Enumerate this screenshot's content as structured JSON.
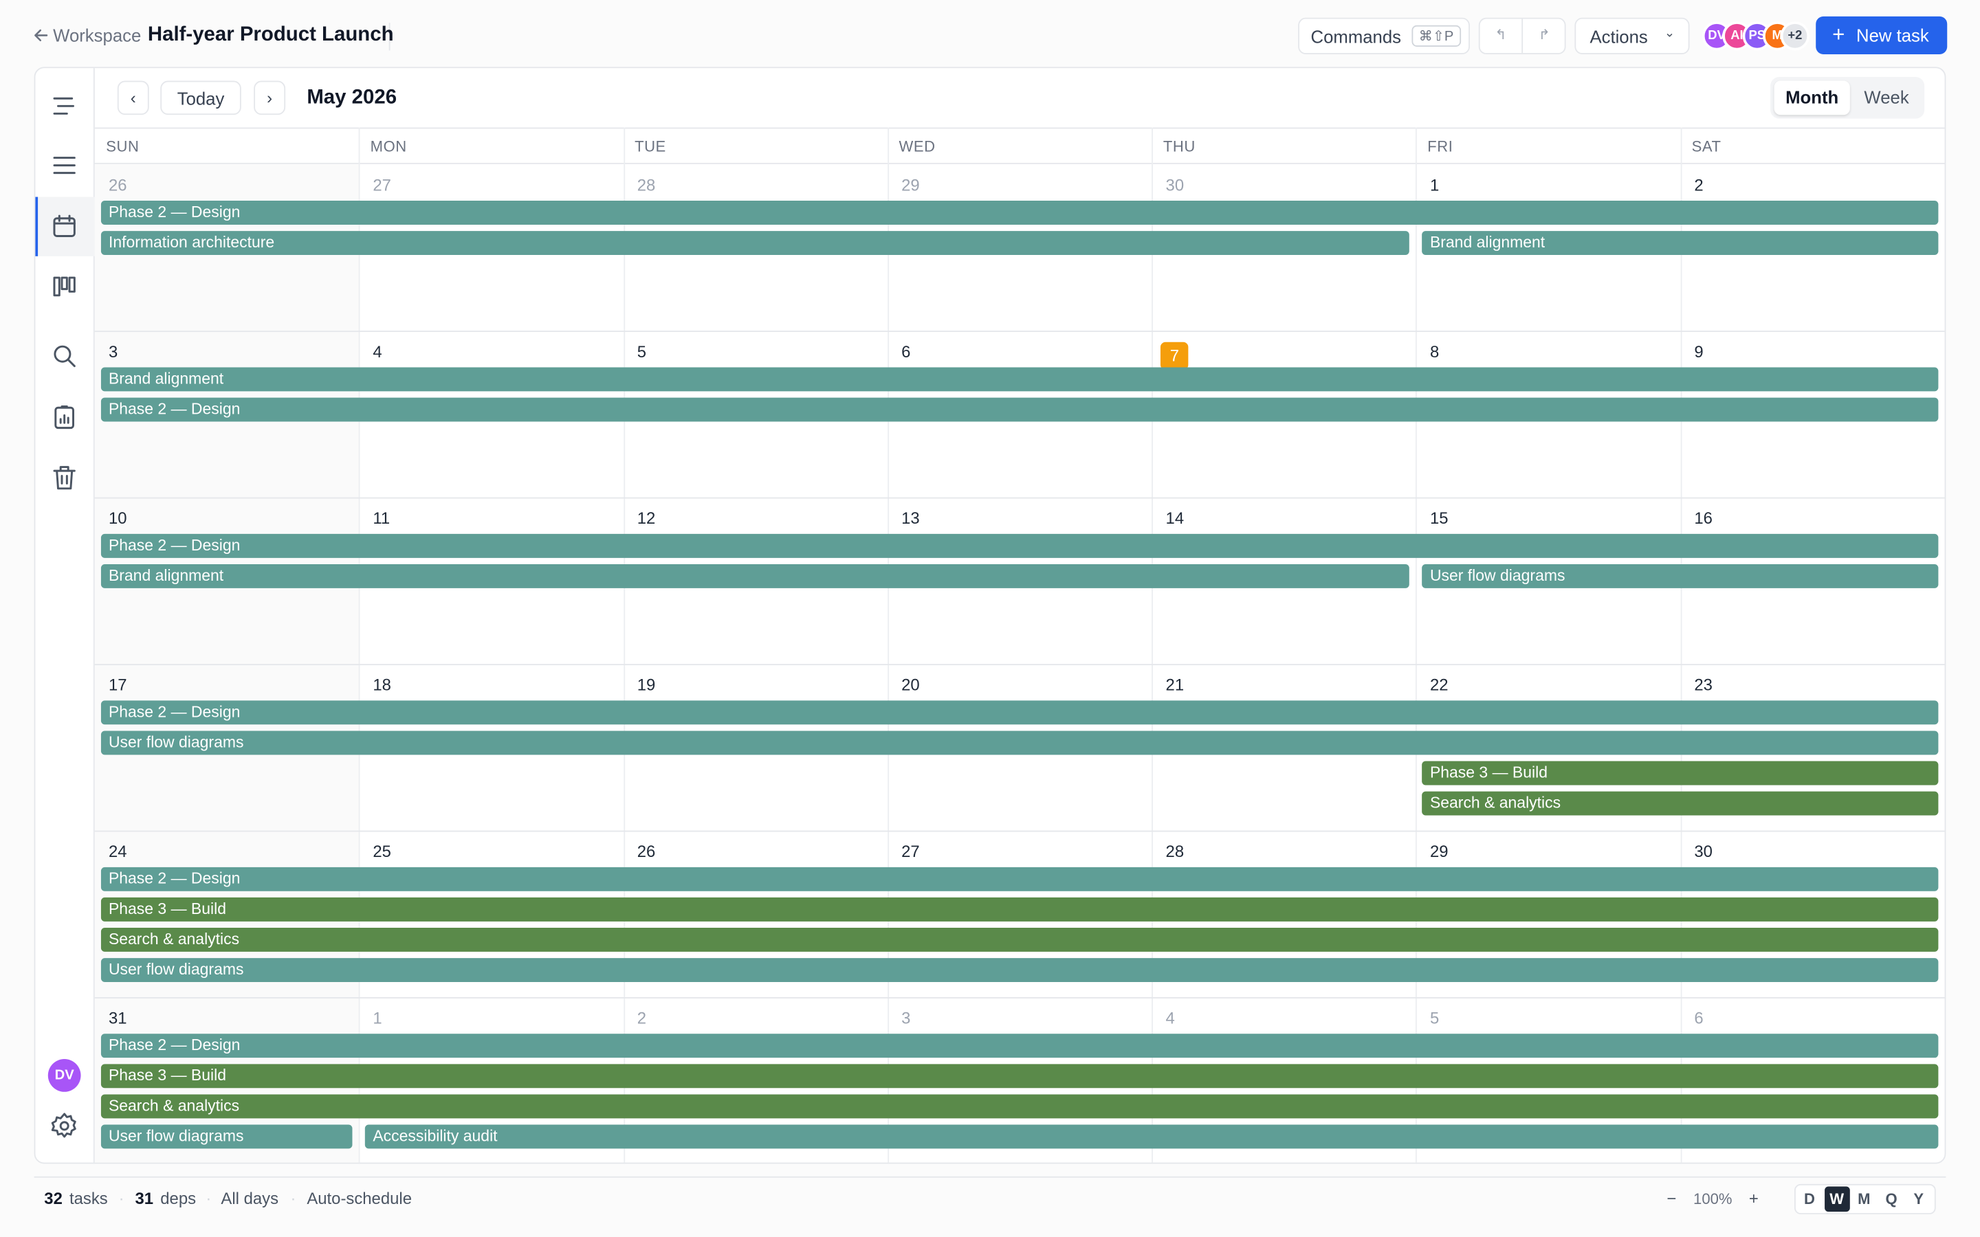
{
  "header": {
    "back": "Workspace",
    "title": "Half-year Product Launch",
    "commands": "Commands",
    "shortcut": "⌘⇧P",
    "actions": "Actions",
    "avatars": [
      {
        "initials": "DV",
        "color": "#a855f7"
      },
      {
        "initials": "AI",
        "color": "#ec4899"
      },
      {
        "initials": "PS",
        "color": "#8b5cf6"
      },
      {
        "initials": "M",
        "color": "#f97316"
      }
    ],
    "more": "+2",
    "new_task": "New task"
  },
  "toolbar": {
    "today": "Today",
    "month_label": "May 2026",
    "views": [
      "Month",
      "Week"
    ],
    "active_view": 0
  },
  "sidebar": {
    "user": "DV"
  },
  "weekdays": [
    "SUN",
    "MON",
    "TUE",
    "WED",
    "THU",
    "FRI",
    "SAT"
  ],
  "weeks": [
    {
      "days": [
        26,
        27,
        28,
        29,
        30,
        1,
        2
      ],
      "dim_days": [
        0,
        1,
        2,
        3,
        4
      ],
      "events": [
        {
          "label": "Phase 2 — Design",
          "lane": 0,
          "start": 0,
          "end": 6,
          "color": "#5f9e96"
        },
        {
          "label": "Information architecture",
          "lane": 1,
          "start": 0,
          "end": 4,
          "color": "#5f9e96"
        },
        {
          "label": "Brand alignment",
          "lane": 1,
          "start": 5,
          "end": 6,
          "color": "#5f9e96"
        }
      ]
    },
    {
      "days": [
        3,
        4,
        5,
        6,
        7,
        8,
        9
      ],
      "today": 4,
      "events": [
        {
          "label": "Brand alignment",
          "lane": 0,
          "start": 0,
          "end": 6,
          "color": "#5f9e96"
        },
        {
          "label": "Phase 2 — Design",
          "lane": 1,
          "start": 0,
          "end": 6,
          "color": "#5f9e96"
        }
      ]
    },
    {
      "days": [
        10,
        11,
        12,
        13,
        14,
        15,
        16
      ],
      "events": [
        {
          "label": "Phase 2 — Design",
          "lane": 0,
          "start": 0,
          "end": 6,
          "color": "#5f9e96"
        },
        {
          "label": "Brand alignment",
          "lane": 1,
          "start": 0,
          "end": 4,
          "color": "#5f9e96"
        },
        {
          "label": "User flow diagrams",
          "lane": 1,
          "start": 5,
          "end": 6,
          "color": "#5f9e96"
        }
      ]
    },
    {
      "days": [
        17,
        18,
        19,
        20,
        21,
        22,
        23
      ],
      "events": [
        {
          "label": "Phase 2 — Design",
          "lane": 0,
          "start": 0,
          "end": 6,
          "color": "#5f9e96"
        },
        {
          "label": "User flow diagrams",
          "lane": 1,
          "start": 0,
          "end": 6,
          "color": "#5f9e96"
        },
        {
          "label": "Phase 3 — Build",
          "lane": 2,
          "start": 5,
          "end": 6,
          "color": "#5a8a4a"
        },
        {
          "label": "Search & analytics",
          "lane": 3,
          "start": 5,
          "end": 6,
          "color": "#5a8a4a"
        }
      ]
    },
    {
      "days": [
        24,
        25,
        26,
        27,
        28,
        29,
        30
      ],
      "events": [
        {
          "label": "Phase 2 — Design",
          "lane": 0,
          "start": 0,
          "end": 6,
          "color": "#5f9e96"
        },
        {
          "label": "Phase 3 — Build",
          "lane": 1,
          "start": 0,
          "end": 6,
          "color": "#5a8a4a"
        },
        {
          "label": "Search & analytics",
          "lane": 2,
          "start": 0,
          "end": 6,
          "color": "#5a8a4a"
        },
        {
          "label": "User flow diagrams",
          "lane": 3,
          "start": 0,
          "end": 6,
          "color": "#5f9e96"
        }
      ]
    },
    {
      "days": [
        31,
        1,
        2,
        3,
        4,
        5,
        6
      ],
      "dim_days": [
        1,
        2,
        3,
        4,
        5,
        6
      ],
      "events": [
        {
          "label": "Phase 2 — Design",
          "lane": 0,
          "start": 0,
          "end": 6,
          "color": "#5f9e96"
        },
        {
          "label": "Phase 3 — Build",
          "lane": 1,
          "start": 0,
          "end": 6,
          "color": "#5a8a4a"
        },
        {
          "label": "Search & analytics",
          "lane": 2,
          "start": 0,
          "end": 6,
          "color": "#5a8a4a"
        },
        {
          "label": "User flow diagrams",
          "lane": 3,
          "start": 0,
          "end": 0,
          "color": "#5f9e96"
        },
        {
          "label": "Accessibility audit",
          "lane": 3,
          "start": 1,
          "end": 6,
          "color": "#5f9e96"
        }
      ]
    }
  ],
  "footer": {
    "tasks": {
      "count": "32",
      "label": "tasks"
    },
    "deps": {
      "count": "31",
      "label": "deps"
    },
    "range": "All days",
    "schedule": "Auto-schedule",
    "zoom_out": "−",
    "zoom": "100%",
    "zoom_in": "+",
    "scales": [
      "D",
      "W",
      "M",
      "Q",
      "Y"
    ],
    "active_scale": 1
  }
}
